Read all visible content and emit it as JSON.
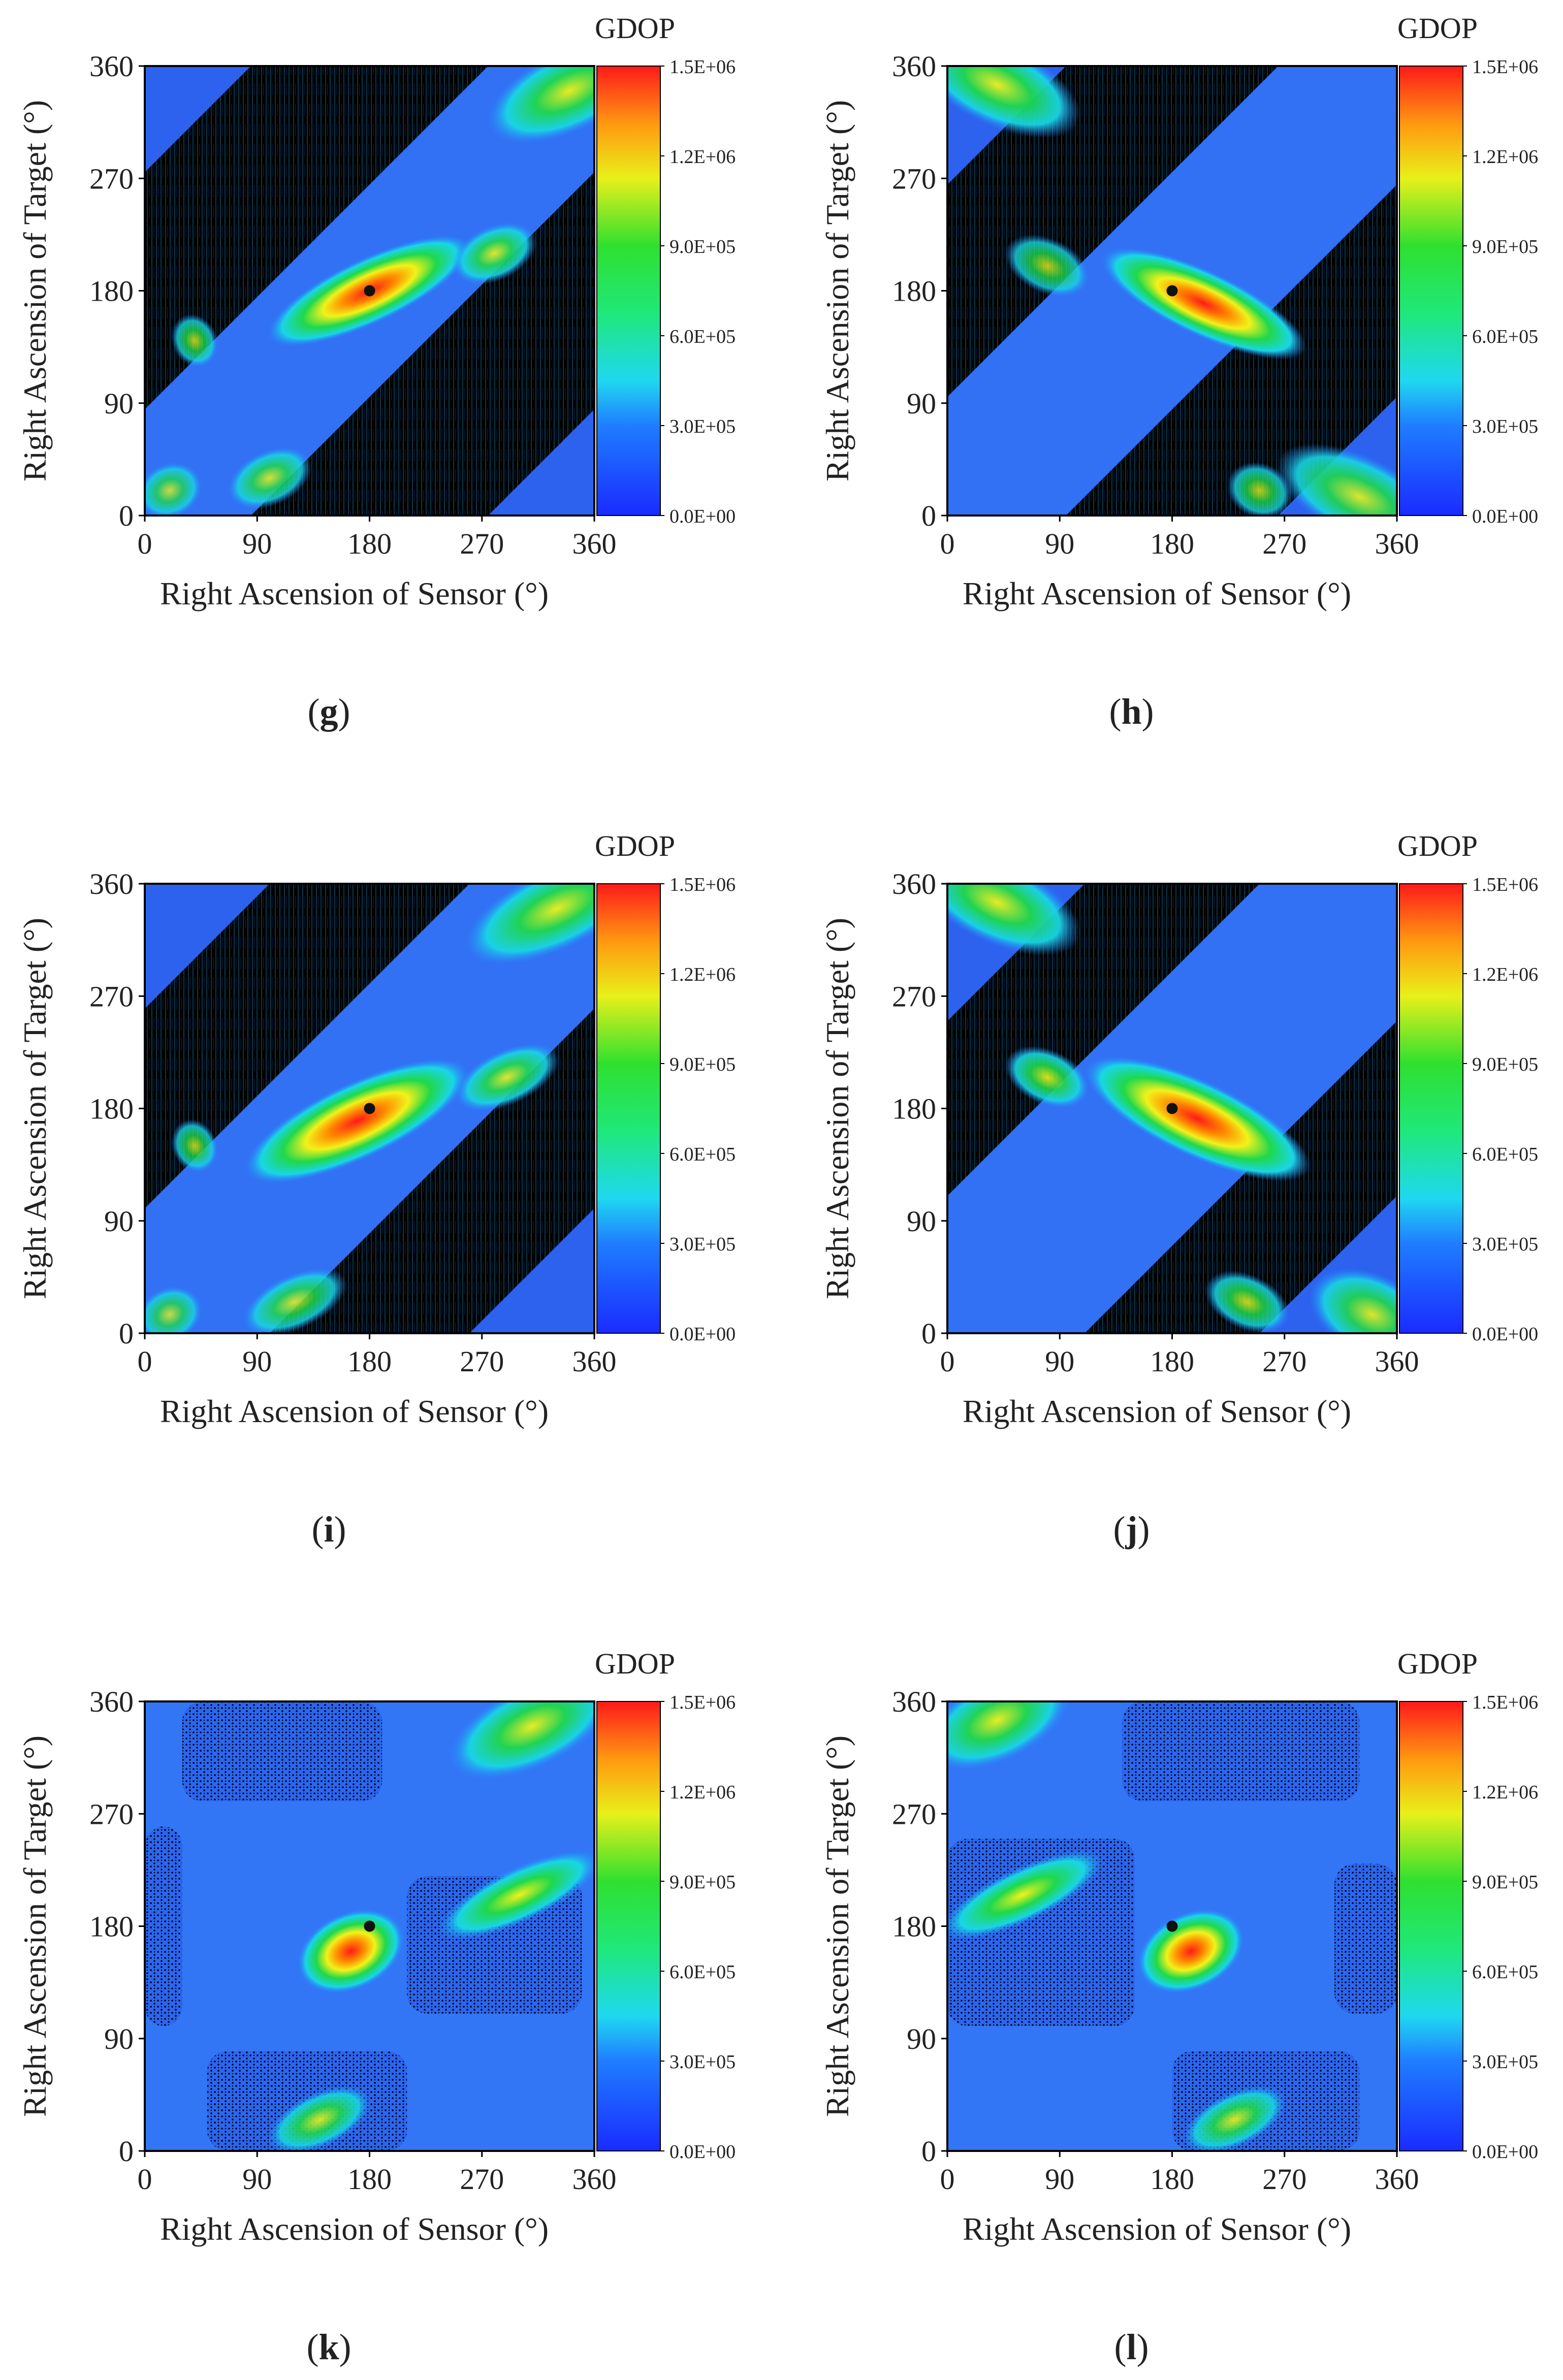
{
  "figure": {
    "panels": [
      "g",
      "h",
      "i",
      "j",
      "k",
      "l"
    ]
  },
  "colors": {
    "background": "#000000",
    "low": "#1f4fe8",
    "mid_low": "#2aa0ff",
    "cyan": "#19e6e6",
    "green": "#1fd84b",
    "yellow": "#f2f21a",
    "orange": "#ff8a00",
    "red": "#ff1a1a",
    "marker": "#111111"
  },
  "chart_data": [
    {
      "type": "heatmap",
      "panel_label": "(g)",
      "label_letter": "g",
      "xlabel": "Right Ascension of Sensor (°)",
      "ylabel": "Right Ascension of Target (°)",
      "xticks": [
        "0",
        "90",
        "180",
        "270",
        "360"
      ],
      "yticks": [
        "0",
        "90",
        "180",
        "270",
        "360"
      ],
      "xlim": [
        0,
        360
      ],
      "ylim": [
        0,
        360
      ],
      "colorbar_title": "GDOP",
      "colorbar_ticks": [
        "0.0E+00",
        "3.0E+05",
        "6.0E+05",
        "9.0E+05",
        "1.2E+06",
        "1.5E+06"
      ],
      "colorbar_range": [
        0,
        1500000
      ],
      "band_width": 170,
      "offset": 0,
      "style": "diagonal",
      "marker": [
        180,
        180
      ],
      "hot_spots": [
        [
          180,
          180,
          50,
          12,
          1.0
        ],
        [
          340,
          340,
          40,
          15,
          0.45
        ],
        [
          280,
          210,
          20,
          10,
          0.4
        ],
        [
          100,
          30,
          20,
          10,
          0.35
        ],
        [
          20,
          20,
          15,
          10,
          0.3
        ],
        [
          40,
          140,
          10,
          10,
          0.3
        ]
      ]
    },
    {
      "type": "heatmap",
      "panel_label": "(h)",
      "label_letter": "h",
      "xlabel": "Right Ascension of Sensor (°)",
      "ylabel": "Right Ascension of Target (°)",
      "xticks": [
        "0",
        "90",
        "180",
        "270",
        "360"
      ],
      "yticks": [
        "0",
        "90",
        "180",
        "270",
        "360"
      ],
      "xlim": [
        0,
        360
      ],
      "ylim": [
        0,
        360
      ],
      "colorbar_title": "GDOP",
      "colorbar_ticks": [
        "0.0E+00",
        "3.0E+05",
        "6.0E+05",
        "9.0E+05",
        "1.2E+06",
        "1.5E+06"
      ],
      "colorbar_range": [
        0,
        1500000
      ],
      "band_width": 190,
      "offset": 0,
      "style": "anti",
      "marker": [
        180,
        180
      ],
      "hot_spots": [
        [
          205,
          170,
          50,
          12,
          1.0
        ],
        [
          40,
          345,
          40,
          15,
          0.45
        ],
        [
          330,
          15,
          40,
          15,
          0.4
        ],
        [
          80,
          200,
          20,
          10,
          0.3
        ],
        [
          250,
          20,
          15,
          10,
          0.3
        ]
      ]
    },
    {
      "type": "heatmap",
      "panel_label": "(i)",
      "label_letter": "i",
      "xlabel": "Right Ascension of Sensor (°)",
      "ylabel": "Right Ascension of Target (°)",
      "xticks": [
        "0",
        "90",
        "180",
        "270",
        "360"
      ],
      "yticks": [
        "0",
        "90",
        "180",
        "270",
        "360"
      ],
      "xlim": [
        0,
        360
      ],
      "ylim": [
        0,
        360
      ],
      "colorbar_title": "GDOP",
      "colorbar_ticks": [
        "0.0E+00",
        "3.0E+05",
        "6.0E+05",
        "9.0E+05",
        "1.2E+06",
        "1.5E+06"
      ],
      "colorbar_range": [
        0,
        1500000
      ],
      "band_width": 200,
      "offset": 0,
      "style": "diagonal",
      "marker": [
        180,
        180
      ],
      "hot_spots": [
        [
          170,
          170,
          55,
          14,
          1.0
        ],
        [
          330,
          340,
          45,
          15,
          0.45
        ],
        [
          290,
          205,
          25,
          10,
          0.4
        ],
        [
          120,
          25,
          25,
          10,
          0.35
        ],
        [
          20,
          15,
          15,
          10,
          0.3
        ],
        [
          40,
          150,
          10,
          10,
          0.3
        ]
      ]
    },
    {
      "type": "heatmap",
      "panel_label": "(j)",
      "label_letter": "j",
      "xlabel": "Right Ascension of Sensor (°)",
      "ylabel": "Right Ascension of Target (°)",
      "xticks": [
        "0",
        "90",
        "180",
        "270",
        "360"
      ],
      "yticks": [
        "0",
        "90",
        "180",
        "270",
        "360"
      ],
      "xlim": [
        0,
        360
      ],
      "ylim": [
        0,
        360
      ],
      "colorbar_title": "GDOP",
      "colorbar_ticks": [
        "0.0E+00",
        "3.0E+05",
        "6.0E+05",
        "9.0E+05",
        "1.2E+06",
        "1.5E+06"
      ],
      "colorbar_range": [
        0,
        1500000
      ],
      "band_width": 220,
      "offset": 0,
      "style": "anti",
      "marker": [
        180,
        180
      ],
      "hot_spots": [
        [
          200,
          172,
          55,
          14,
          1.0
        ],
        [
          40,
          345,
          40,
          15,
          0.45
        ],
        [
          340,
          15,
          30,
          15,
          0.4
        ],
        [
          80,
          205,
          20,
          10,
          0.4
        ],
        [
          240,
          25,
          20,
          10,
          0.35
        ]
      ]
    },
    {
      "type": "heatmap",
      "panel_label": "(k)",
      "label_letter": "k",
      "xlabel": "Right Ascension of Sensor (°)",
      "ylabel": "Right Ascension of Target (°)",
      "xticks": [
        "0",
        "90",
        "180",
        "270",
        "360"
      ],
      "yticks": [
        "0",
        "90",
        "180",
        "270",
        "360"
      ],
      "xlim": [
        0,
        360
      ],
      "ylim": [
        0,
        360
      ],
      "colorbar_title": "GDOP",
      "colorbar_ticks": [
        "0.0E+00",
        "3.0E+05",
        "6.0E+05",
        "9.0E+05",
        "1.2E+06",
        "1.5E+06"
      ],
      "colorbar_range": [
        0,
        1500000
      ],
      "style": "patches",
      "marker": [
        180,
        180
      ],
      "patches": [
        [
          30,
          280,
          190,
          360
        ],
        [
          0,
          100,
          30,
          260
        ],
        [
          210,
          110,
          350,
          220
        ],
        [
          50,
          0,
          210,
          80
        ]
      ],
      "hot_spots": [
        [
          165,
          160,
          25,
          14,
          0.9
        ],
        [
          310,
          340,
          40,
          15,
          0.45
        ],
        [
          300,
          205,
          40,
          10,
          0.6
        ],
        [
          140,
          25,
          25,
          10,
          0.4
        ]
      ]
    },
    {
      "type": "heatmap",
      "panel_label": "(l)",
      "label_letter": "l",
      "xlabel": "Right Ascension of Sensor (°)",
      "ylabel": "Right Ascension of Target (°)",
      "xticks": [
        "0",
        "90",
        "180",
        "270",
        "360"
      ],
      "yticks": [
        "0",
        "90",
        "180",
        "270",
        "360"
      ],
      "xlim": [
        0,
        360
      ],
      "ylim": [
        0,
        360
      ],
      "colorbar_title": "GDOP",
      "colorbar_ticks": [
        "0.0E+00",
        "3.0E+05",
        "6.0E+05",
        "9.0E+05",
        "1.2E+06",
        "1.5E+06"
      ],
      "colorbar_range": [
        0,
        1500000
      ],
      "style": "patches",
      "marker": [
        180,
        180
      ],
      "patches": [
        [
          140,
          280,
          330,
          360
        ],
        [
          0,
          100,
          150,
          250
        ],
        [
          310,
          110,
          360,
          230
        ],
        [
          180,
          0,
          330,
          80
        ]
      ],
      "hot_spots": [
        [
          195,
          160,
          25,
          14,
          0.9
        ],
        [
          40,
          345,
          35,
          15,
          0.45
        ],
        [
          60,
          205,
          40,
          10,
          0.6
        ],
        [
          230,
          25,
          25,
          10,
          0.4
        ]
      ]
    }
  ]
}
